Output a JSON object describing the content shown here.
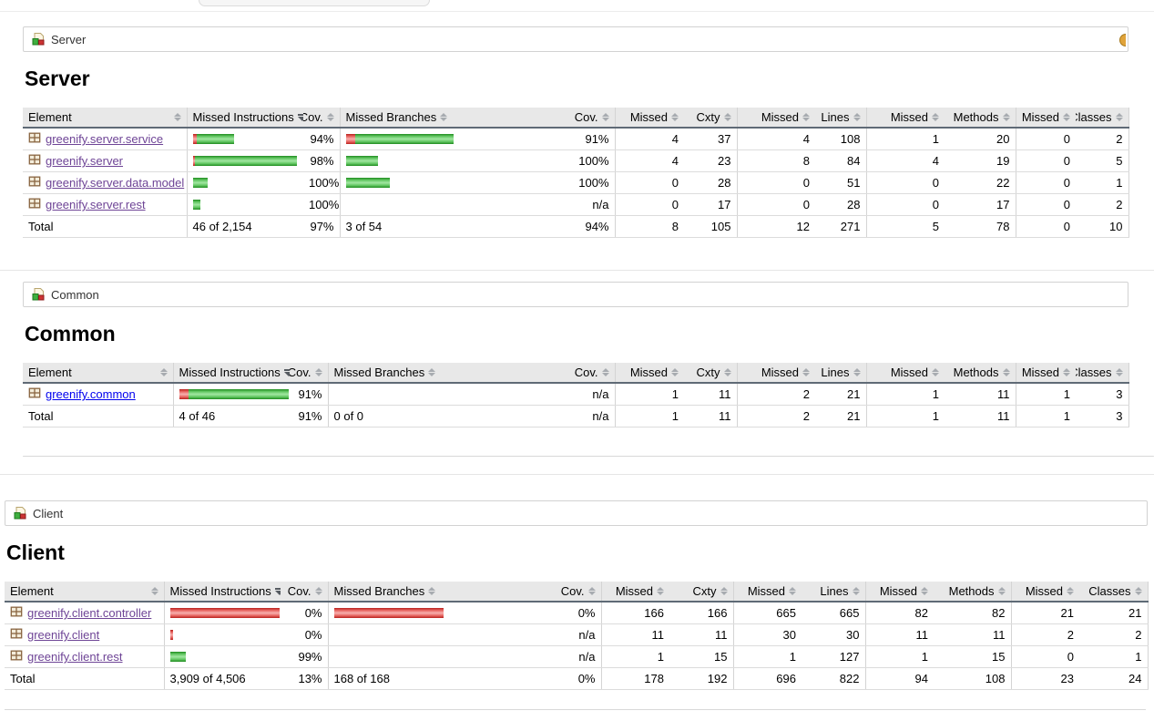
{
  "colors": {
    "bar_covered_green": "#3fae3f",
    "bar_missed_red": "#c9302c",
    "link": "#0000ee",
    "link_visited": "#6e4496",
    "table_header_bg": "#e8e8e8",
    "sessions_icon_orange": "#e0a33a"
  },
  "columns": [
    "Element",
    "Missed Instructions",
    "Cov.",
    "Missed Branches",
    "Cov.",
    "Missed",
    "Cxty",
    "Missed",
    "Lines",
    "Missed",
    "Methods",
    "Missed",
    "Classes"
  ],
  "sort": {
    "active_column": "Missed Instructions",
    "direction": "desc"
  },
  "sections": [
    {
      "id": "server",
      "breadcrumb": "Server",
      "heading": "Server",
      "rows": [
        {
          "name": "greenify.server.service",
          "visited": true,
          "instr_bar": {
            "red": 4,
            "green": 41
          },
          "instr_cov": "94%",
          "branch_bar": {
            "red": 10,
            "green": 108
          },
          "branch_cov": "91%",
          "nums": [
            "4",
            "37",
            "4",
            "108",
            "1",
            "20",
            "0",
            "2"
          ]
        },
        {
          "name": "greenify.server",
          "visited": true,
          "instr_bar": {
            "red": 2,
            "green": 112
          },
          "instr_cov": "98%",
          "branch_bar": {
            "red": 0,
            "green": 35
          },
          "branch_cov": "100%",
          "nums": [
            "4",
            "23",
            "8",
            "84",
            "4",
            "19",
            "0",
            "5"
          ]
        },
        {
          "name": "greenify.server.data.model",
          "visited": true,
          "instr_bar": {
            "red": 0,
            "green": 16
          },
          "instr_cov": "100%",
          "branch_bar": {
            "red": 0,
            "green": 48
          },
          "branch_cov": "100%",
          "nums": [
            "0",
            "28",
            "0",
            "51",
            "0",
            "22",
            "0",
            "1"
          ]
        },
        {
          "name": "greenify.server.rest",
          "visited": true,
          "instr_bar": {
            "red": 0,
            "green": 8
          },
          "instr_cov": "100%",
          "branch_bar": null,
          "branch_cov": "n/a",
          "nums": [
            "0",
            "17",
            "0",
            "28",
            "0",
            "17",
            "0",
            "2"
          ]
        }
      ],
      "total": {
        "label": "Total",
        "instr": "46 of 2,154",
        "instr_cov": "97%",
        "branch": "3 of 54",
        "branch_cov": "94%",
        "nums": [
          "8",
          "105",
          "12",
          "271",
          "5",
          "78",
          "0",
          "10"
        ]
      }
    },
    {
      "id": "common",
      "breadcrumb": "Common",
      "heading": "Common",
      "rows": [
        {
          "name": "greenify.common",
          "visited": false,
          "instr_bar": {
            "red": 10,
            "green": 110
          },
          "instr_cov": "91%",
          "branch_bar": null,
          "branch_cov": "n/a",
          "nums": [
            "1",
            "11",
            "2",
            "21",
            "1",
            "11",
            "1",
            "3"
          ]
        }
      ],
      "total": {
        "label": "Total",
        "instr": "4 of 46",
        "instr_cov": "91%",
        "branch": "0 of 0",
        "branch_cov": "n/a",
        "nums": [
          "1",
          "11",
          "2",
          "21",
          "1",
          "11",
          "1",
          "3"
        ]
      }
    },
    {
      "id": "client",
      "breadcrumb": "Client",
      "heading": "Client",
      "rows": [
        {
          "name": "greenify.client.controller",
          "visited": true,
          "instr_bar": {
            "red": 120,
            "green": 0
          },
          "instr_cov": "0%",
          "branch_bar": {
            "red": 120,
            "green": 0
          },
          "branch_cov": "0%",
          "nums": [
            "166",
            "166",
            "665",
            "665",
            "82",
            "82",
            "21",
            "21"
          ]
        },
        {
          "name": "greenify.client",
          "visited": true,
          "instr_bar": {
            "red": 3,
            "green": 0
          },
          "instr_cov": "0%",
          "branch_bar": null,
          "branch_cov": "n/a",
          "nums": [
            "11",
            "11",
            "30",
            "30",
            "11",
            "11",
            "2",
            "2"
          ]
        },
        {
          "name": "greenify.client.rest",
          "visited": true,
          "instr_bar": {
            "red": 0,
            "green": 17
          },
          "instr_cov": "99%",
          "branch_bar": null,
          "branch_cov": "n/a",
          "nums": [
            "1",
            "15",
            "1",
            "127",
            "1",
            "15",
            "0",
            "1"
          ]
        }
      ],
      "total": {
        "label": "Total",
        "instr": "3,909 of 4,506",
        "instr_cov": "13%",
        "branch": "168 of 168",
        "branch_cov": "0%",
        "nums": [
          "178",
          "192",
          "696",
          "822",
          "94",
          "108",
          "23",
          "24"
        ]
      }
    }
  ]
}
